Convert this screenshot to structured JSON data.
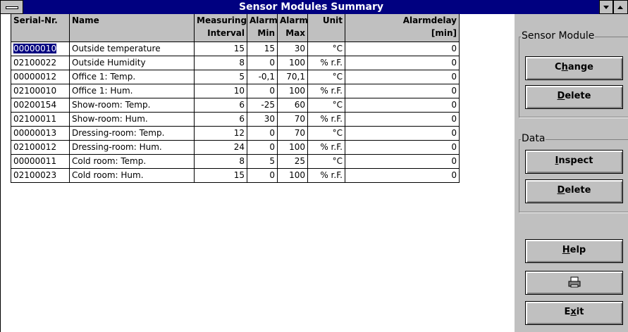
{
  "window": {
    "title": "Sensor Modules Summary"
  },
  "table": {
    "headers": [
      [
        "Serial-Nr."
      ],
      [
        "Name"
      ],
      [
        "Measuring",
        "Interval"
      ],
      [
        "Alarm",
        "Min"
      ],
      [
        "Alarm",
        "Max"
      ],
      [
        "Unit"
      ],
      [
        "Alarmdelay",
        "[min]"
      ]
    ],
    "rows": [
      [
        "00000010",
        "Outside temperature",
        "15",
        "15",
        "30",
        "°C",
        "0"
      ],
      [
        "02100022",
        "Outside Humidity",
        "8",
        "0",
        "100",
        "% r.F.",
        "0"
      ],
      [
        "00000012",
        "Office 1: Temp.",
        "5",
        "-0,1",
        "70,1",
        "°C",
        "0"
      ],
      [
        "02100010",
        "Office 1: Hum.",
        "10",
        "0",
        "100",
        "% r.F.",
        "0"
      ],
      [
        "00200154",
        "Show-room: Temp.",
        "6",
        "-25",
        "60",
        "°C",
        "0"
      ],
      [
        "02100011",
        "Show-room: Hum.",
        "6",
        "30",
        "70",
        "% r.F.",
        "0"
      ],
      [
        "00000013",
        "Dressing-room: Temp.",
        "12",
        "0",
        "70",
        "°C",
        "0"
      ],
      [
        "02100012",
        "Dressing-room: Hum.",
        "24",
        "0",
        "100",
        "% r.F.",
        "0"
      ],
      [
        "00000011",
        "Cold room: Temp.",
        "8",
        "5",
        "25",
        "°C",
        "0"
      ],
      [
        "02100023",
        "Cold room: Hum.",
        "15",
        "0",
        "100",
        "% r.F.",
        "0"
      ]
    ]
  },
  "groups": [
    {
      "label": "Sensor Module",
      "buttons": [
        {
          "pre": "C",
          "key": "h",
          "post": "ange"
        },
        {
          "key": "D",
          "post": "elete"
        }
      ]
    },
    {
      "label": "Data",
      "buttons": [
        {
          "key": "I",
          "post": "nspect"
        },
        {
          "key": "D",
          "post": "elete"
        }
      ]
    }
  ],
  "buttons": [
    {
      "key": "H",
      "post": "elp"
    },
    {
      "pre": "E",
      "key": "x",
      "post": "it"
    }
  ]
}
